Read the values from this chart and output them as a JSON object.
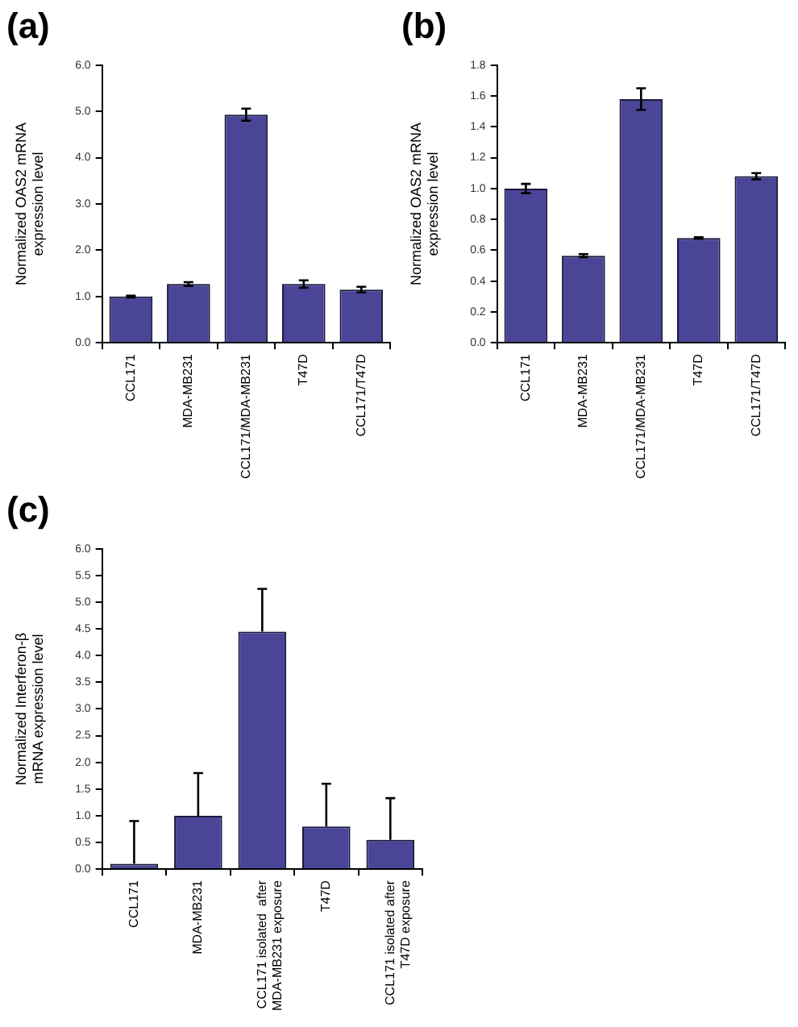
{
  "chart_data": [
    {
      "type": "bar",
      "title": "(a)",
      "ylabel": "Normalized OAS2 mRNA expression level",
      "categories": [
        "CCL171",
        "MDA-MB231",
        "CCL171/MDA-MB231",
        "T47D",
        "CCL171/T47D"
      ],
      "values": [
        1.0,
        1.27,
        4.93,
        1.27,
        1.15
      ],
      "errors": [
        0.02,
        0.04,
        0.13,
        0.08,
        0.06
      ],
      "color": "#4b4598",
      "ylim": [
        0,
        6
      ],
      "yticks": [
        {
          "value": 0,
          "label": "0.0"
        },
        {
          "value": 1,
          "label": "1.0"
        },
        {
          "value": 2,
          "label": "2.0"
        },
        {
          "value": 3,
          "label": "3.0"
        },
        {
          "value": 4,
          "label": "4.0"
        },
        {
          "value": 5,
          "label": "5.0"
        },
        {
          "value": 6,
          "label": "6.0"
        }
      ],
      "grid": false,
      "legend": false
    },
    {
      "type": "bar",
      "title": "(b)",
      "ylabel": "Normalized OAS2 mRNA expression level",
      "categories": [
        "CCL171",
        "MDA-MB231",
        "CCL171/MDA-MB231",
        "T47D",
        "CCL171/T47D"
      ],
      "values": [
        1.0,
        0.565,
        1.58,
        0.68,
        1.08
      ],
      "errors": [
        0.03,
        0.01,
        0.07,
        0.005,
        0.02
      ],
      "color": "#4b4598",
      "ylim": [
        0,
        1.8
      ],
      "yticks": [
        {
          "value": 0,
          "label": "0.0"
        },
        {
          "value": 0.2,
          "label": "0.2"
        },
        {
          "value": 0.4,
          "label": "0.4"
        },
        {
          "value": 0.6,
          "label": "0.6"
        },
        {
          "value": 0.8,
          "label": "0.8"
        },
        {
          "value": 1.0,
          "label": "1.0"
        },
        {
          "value": 1.2,
          "label": "1.2"
        },
        {
          "value": 1.4,
          "label": "1.4"
        },
        {
          "value": 1.6,
          "label": "1.6"
        },
        {
          "value": 1.8,
          "label": "1.8"
        }
      ],
      "grid": false,
      "legend": false
    },
    {
      "type": "bar",
      "title": "(c)",
      "ylabel": "Normalized Interferon-β mRNA expression level",
      "categories": [
        "CCL171",
        "MDA-MB231",
        "CCL171 isolated  after\nMDA-MB231 exposure",
        "T47D",
        "CCL171 isolated after\nT47D exposure"
      ],
      "values": [
        0.1,
        1.0,
        4.45,
        0.8,
        0.55
      ],
      "errors": [
        [
          0.1,
          0.9
        ],
        [
          1.0,
          1.8
        ],
        [
          4.45,
          5.25
        ],
        [
          0.8,
          1.6
        ],
        [
          0.55,
          1.33
        ]
      ],
      "color": "#4b4598",
      "ylim": [
        0,
        6
      ],
      "yticks": [
        {
          "value": 0,
          "label": "0.0"
        },
        {
          "value": 0.5,
          "label": "0.5"
        },
        {
          "value": 1,
          "label": "1.0"
        },
        {
          "value": 1.5,
          "label": "1.5"
        },
        {
          "value": 2,
          "label": "2.0"
        },
        {
          "value": 2.5,
          "label": "2.5"
        },
        {
          "value": 3,
          "label": "3.0"
        },
        {
          "value": 3.5,
          "label": "3.5"
        },
        {
          "value": 4,
          "label": "4.0"
        },
        {
          "value": 4.5,
          "label": "4.5"
        },
        {
          "value": 5,
          "label": "5.0"
        },
        {
          "value": 5.5,
          "label": "5.5"
        },
        {
          "value": 6,
          "label": "6.0"
        }
      ],
      "grid": false,
      "legend": false
    }
  ]
}
